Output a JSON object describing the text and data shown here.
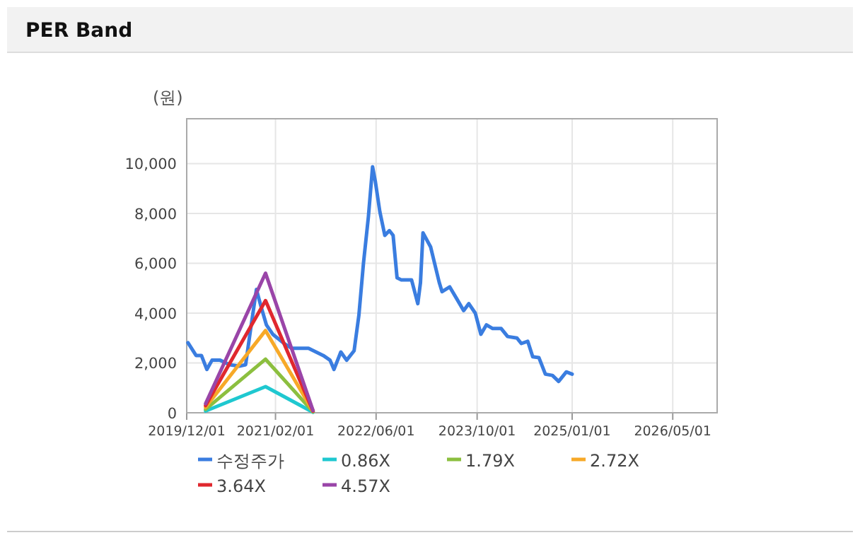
{
  "chart_data": {
    "type": "line",
    "title": "PER Band",
    "ylabel": "(원)",
    "grid": true,
    "legend": "bottom",
    "line_style": "solid",
    "xlim": [
      "2019-12-01",
      "2026-12-01"
    ],
    "xticks": [
      {
        "value": "2019-12-01",
        "label": "2019/12/01"
      },
      {
        "value": "2021-02-01",
        "label": "2021/02/01"
      },
      {
        "value": "2022-06-01",
        "label": "2022/06/01"
      },
      {
        "value": "2023-10-01",
        "label": "2023/10/01"
      },
      {
        "value": "2025-01-01",
        "label": "2025/01/01"
      },
      {
        "value": "2026-05-01",
        "label": "2026/05/01"
      }
    ],
    "ylim": [
      0,
      11800
    ],
    "yticks": [
      0,
      {
        "value": 2000,
        "label": "2,000"
      },
      {
        "value": 4000,
        "label": "4,000"
      },
      {
        "value": 6000,
        "label": "6,000"
      },
      {
        "value": 8000,
        "label": "8,000"
      },
      {
        "value": 10000,
        "label": "10,000"
      }
    ],
    "series": [
      {
        "name": "수정주가",
        "color": "#3a7de0",
        "x": [
          "2019-12-07",
          "2020-01-15",
          "2020-02-10",
          "2020-03-07",
          "2020-04-01",
          "2020-05-10",
          "2020-06-25",
          "2020-08-10",
          "2020-09-10",
          "2020-10-04",
          "2020-11-01",
          "2020-11-22",
          "2020-12-19",
          "2021-01-19",
          "2021-03-15",
          "2021-04-19",
          "2021-07-10",
          "2021-09-19",
          "2021-10-22",
          "2021-11-10",
          "2021-12-13",
          "2022-01-10",
          "2022-02-15",
          "2022-03-10",
          "2022-04-01",
          "2022-04-25",
          "2022-05-15",
          "2022-05-28",
          "2022-06-19",
          "2022-07-13",
          "2022-08-04",
          "2022-08-22",
          "2022-09-10",
          "2022-10-01",
          "2022-11-19",
          "2022-12-19",
          "2023-01-01",
          "2023-01-13",
          "2023-02-19",
          "2023-04-01",
          "2023-04-15",
          "2023-05-22",
          "2023-06-25",
          "2023-07-28",
          "2023-08-22",
          "2023-09-22",
          "2023-10-19",
          "2023-11-15",
          "2023-12-15",
          "2024-01-25",
          "2024-02-25",
          "2024-04-10",
          "2024-05-01",
          "2024-06-01",
          "2024-06-25",
          "2024-07-25",
          "2024-08-25",
          "2024-09-28",
          "2024-10-28",
          "2024-12-04",
          "2025-01-01"
        ],
        "values": [
          2810,
          2300,
          2300,
          1740,
          2110,
          2110,
          1930,
          1870,
          1930,
          3350,
          4950,
          4300,
          3530,
          3150,
          2780,
          2590,
          2590,
          2300,
          2110,
          1740,
          2440,
          2110,
          2490,
          3910,
          5990,
          7880,
          9870,
          9300,
          8070,
          7120,
          7310,
          7120,
          5420,
          5330,
          5330,
          4380,
          5230,
          7220,
          6650,
          5240,
          4860,
          5050,
          4570,
          4100,
          4380,
          4000,
          3150,
          3530,
          3380,
          3380,
          3060,
          3000,
          2780,
          2870,
          2250,
          2210,
          1550,
          1500,
          1260,
          1640,
          1550
        ]
      },
      {
        "name": "0.86X",
        "color": "#1fc8d0",
        "x": [
          "2020-03-01",
          "2020-12-15",
          "2021-08-01"
        ],
        "values": [
          70,
          1050,
          20
        ]
      },
      {
        "name": "1.79X",
        "color": "#8cbf3f",
        "x": [
          "2020-03-01",
          "2020-12-15",
          "2021-08-01"
        ],
        "values": [
          140,
          2150,
          40
        ]
      },
      {
        "name": "2.72X",
        "color": "#f7a928",
        "x": [
          "2020-03-01",
          "2020-12-15",
          "2021-08-01"
        ],
        "values": [
          220,
          3300,
          60
        ]
      },
      {
        "name": "3.64X",
        "color": "#e0282e",
        "x": [
          "2020-03-01",
          "2020-12-15",
          "2021-08-01"
        ],
        "values": [
          290,
          4500,
          70
        ]
      },
      {
        "name": "4.57X",
        "color": "#9a45a8",
        "x": [
          "2020-03-01",
          "2020-12-15",
          "2021-08-01"
        ],
        "values": [
          370,
          5600,
          90
        ]
      }
    ]
  }
}
